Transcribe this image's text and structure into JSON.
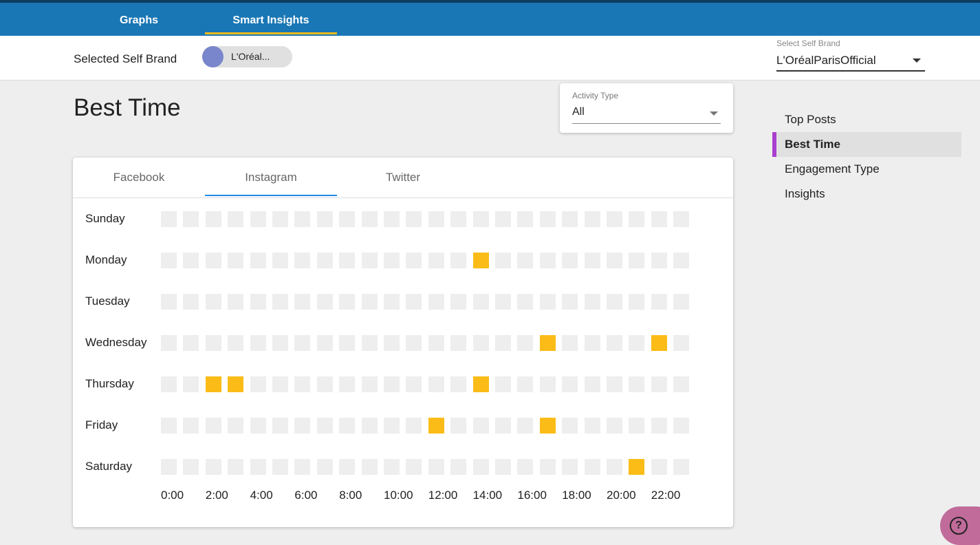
{
  "nav": {
    "tabs": [
      "Graphs",
      "Smart Insights"
    ]
  },
  "brand_bar": {
    "label": "Selected Self Brand",
    "chip": "L'Oréal...",
    "select_label": "Select Self Brand",
    "select_value": "L'OréalParisOfficial"
  },
  "page": {
    "title": "Best Time",
    "activity_label": "Activity Type",
    "activity_value": "All"
  },
  "side_menu": [
    "Top Posts",
    "Best Time",
    "Engagement Type",
    "Insights"
  ],
  "platform_tabs": [
    "Facebook",
    "Instagram",
    "Twitter"
  ],
  "heatmap": {
    "hour_labels": [
      "0:00",
      "2:00",
      "4:00",
      "6:00",
      "8:00",
      "10:00",
      "12:00",
      "14:00",
      "16:00",
      "18:00",
      "20:00",
      "22:00"
    ],
    "rows": [
      {
        "day": "Sunday",
        "values": [
          0,
          0,
          0,
          0,
          0,
          0,
          0,
          0,
          0,
          0,
          0,
          0,
          0,
          0,
          0,
          0,
          0,
          0,
          0,
          0,
          0,
          0,
          0,
          0
        ]
      },
      {
        "day": "Monday",
        "values": [
          0,
          0,
          0,
          0,
          0,
          0,
          0,
          0,
          0,
          0,
          0,
          0,
          0,
          0,
          1,
          0,
          0,
          0,
          0,
          0,
          0,
          0,
          0,
          0
        ]
      },
      {
        "day": "Tuesday",
        "values": [
          0,
          0,
          0,
          0,
          0,
          0,
          0,
          0,
          0,
          0,
          0,
          0,
          0,
          0,
          0,
          0,
          0,
          0,
          0,
          0,
          0,
          0,
          0,
          0
        ]
      },
      {
        "day": "Wednesday",
        "values": [
          0,
          0,
          0,
          0,
          0,
          0,
          0,
          0,
          0,
          0,
          0,
          0,
          0,
          0,
          0,
          0,
          0,
          1,
          0,
          0,
          0,
          0,
          1,
          0
        ]
      },
      {
        "day": "Thursday",
        "values": [
          0,
          0,
          1,
          1,
          0,
          0,
          0,
          0,
          0,
          0,
          0,
          0,
          0,
          0,
          1,
          0,
          0,
          0,
          0,
          0,
          0,
          0,
          0,
          0
        ]
      },
      {
        "day": "Friday",
        "values": [
          0,
          0,
          0,
          0,
          0,
          0,
          0,
          0,
          0,
          0,
          0,
          0,
          1,
          0,
          0,
          0,
          0,
          1,
          0,
          0,
          0,
          0,
          0,
          0
        ]
      },
      {
        "day": "Saturday",
        "values": [
          0,
          0,
          0,
          0,
          0,
          0,
          0,
          0,
          0,
          0,
          0,
          0,
          0,
          0,
          0,
          0,
          0,
          0,
          0,
          0,
          0,
          1,
          0,
          0
        ]
      }
    ]
  }
}
